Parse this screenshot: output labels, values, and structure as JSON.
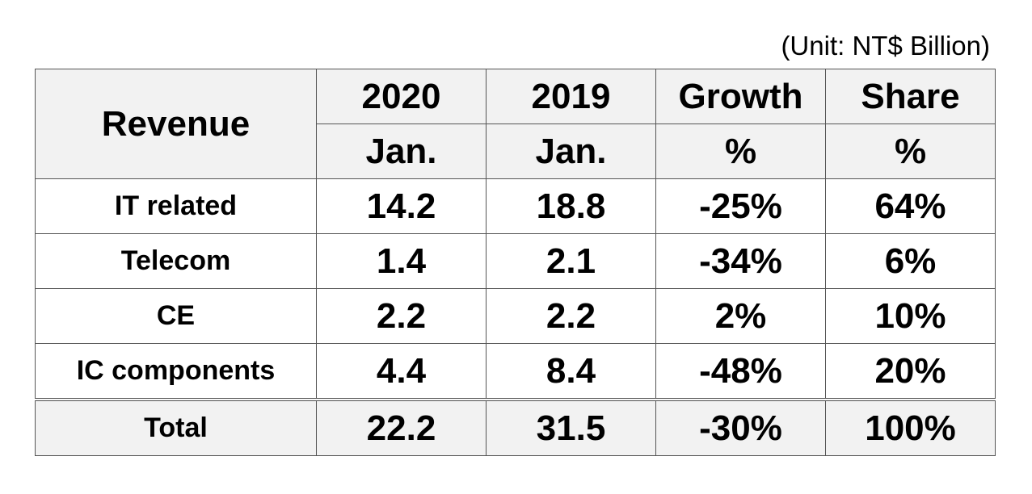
{
  "unit_label": "(Unit: NT$ Billion)",
  "header": {
    "row_label": "Revenue",
    "columns": [
      {
        "top": "2020",
        "bottom": "Jan."
      },
      {
        "top": "2019",
        "bottom": "Jan."
      },
      {
        "top": "Growth",
        "bottom": "%"
      },
      {
        "top": "Share",
        "bottom": "%"
      }
    ]
  },
  "chart_data": {
    "type": "table",
    "columns": [
      "2020 Jan.",
      "2019 Jan.",
      "Growth %",
      "Share %"
    ],
    "rows": [
      {
        "label": "IT related",
        "values": [
          "14.2",
          "18.8",
          "-25%",
          "64%"
        ]
      },
      {
        "label": "Telecom",
        "values": [
          "1.4",
          "2.1",
          "-34%",
          "6%"
        ]
      },
      {
        "label": "CE",
        "values": [
          "2.2",
          "2.2",
          "2%",
          "10%"
        ]
      },
      {
        "label": "IC components",
        "values": [
          "4.4",
          "8.4",
          "-48%",
          "20%"
        ]
      },
      {
        "label": "Total",
        "values": [
          "22.2",
          "31.5",
          "-30%",
          "100%"
        ]
      }
    ]
  }
}
